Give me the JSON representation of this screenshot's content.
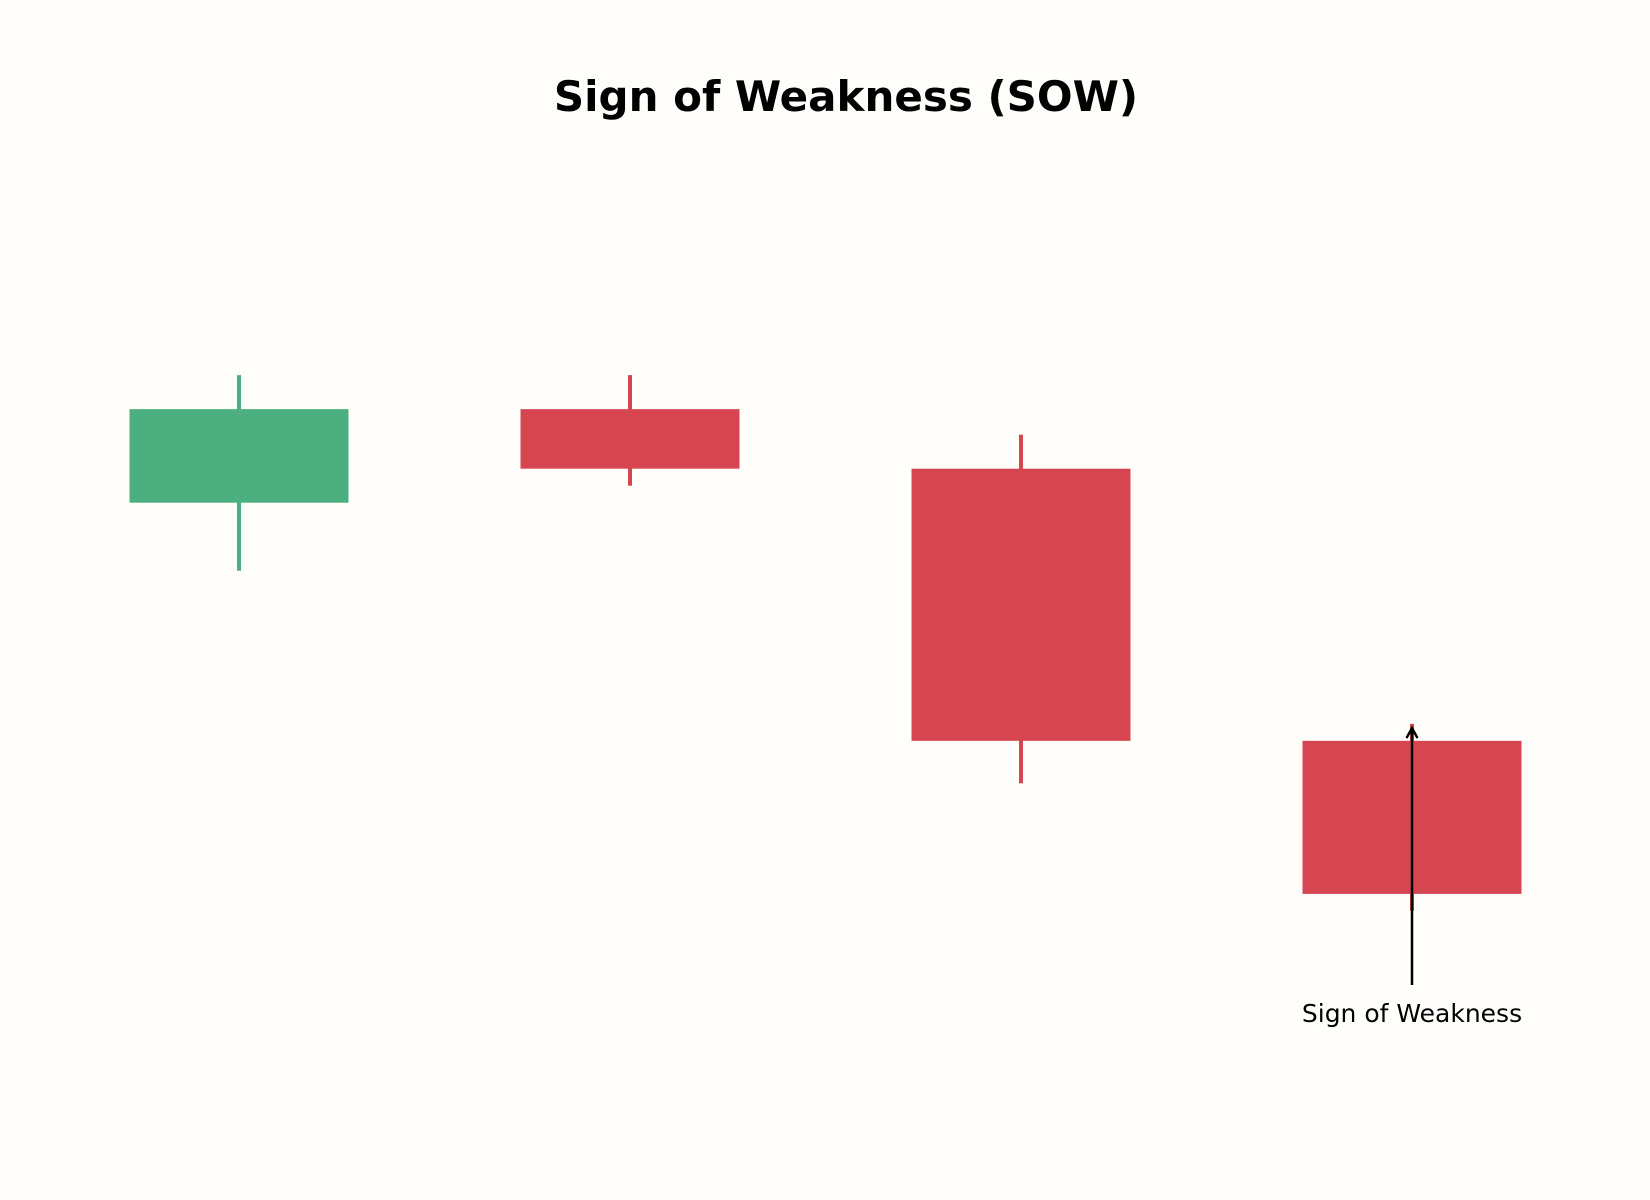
{
  "chart_data": {
    "type": "candlestick",
    "title": "Sign of Weakness (SOW)",
    "xlabel": "",
    "ylabel": "",
    "axes_visible": false,
    "grid": false,
    "legend": "none",
    "ylim": [
      91.8,
      103.5
    ],
    "colors": {
      "up": "#4caf7f",
      "down": "#d64550",
      "background": "#fffefb",
      "annotation": "#000000"
    },
    "candles": [
      {
        "index": 1,
        "open": 99.0,
        "high": 100.5,
        "low": 98.2,
        "close": 100.1
      },
      {
        "index": 2,
        "open": 100.1,
        "high": 100.5,
        "low": 99.2,
        "close": 99.4
      },
      {
        "index": 3,
        "open": 99.4,
        "high": 99.8,
        "low": 95.7,
        "close": 96.2
      },
      {
        "index": 4,
        "open": 96.2,
        "high": 96.4,
        "low": 94.2,
        "close": 94.4
      }
    ],
    "annotations": [
      {
        "text": "Sign of Weakness",
        "candle_index": 4,
        "point_y": 96.35,
        "text_y": 93.0
      }
    ]
  }
}
